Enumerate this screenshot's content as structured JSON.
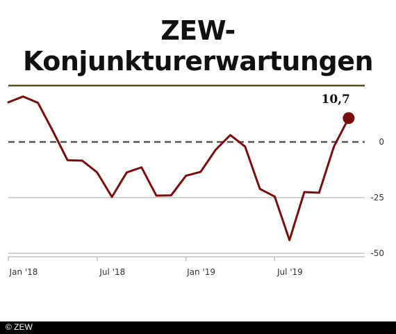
{
  "title": "ZEW-Konjunkturerwartungen",
  "footer": {
    "credit": "© ZEW"
  },
  "colors": {
    "line": "#7a0c0c",
    "marker": "#7a0c0c",
    "top_rule": "#5a4a1f",
    "zero_line": "#555555",
    "grid": "#b5b5b5",
    "axis_text": "#333333",
    "footer_bg": "#000000"
  },
  "chart_data": {
    "type": "line",
    "title": "ZEW-Konjunkturerwartungen",
    "x_ticks": [
      "Jan '18",
      "Jul '18",
      "Jan '19",
      "Jul '19"
    ],
    "x_tick_index": [
      0,
      6,
      12,
      18
    ],
    "y_ticks": [
      "0",
      "-25",
      "-50"
    ],
    "y_tick_values": [
      0,
      -25,
      -50
    ],
    "ylim": [
      -50,
      25
    ],
    "grid": "horizontal",
    "series": [
      {
        "values": [
          17.8,
          20.4,
          17.6,
          5.0,
          -8.2,
          -8.4,
          -13.7,
          -24.7,
          -13.7,
          -11.4,
          -24.1,
          -24.0,
          -15.2,
          -13.4,
          -3.6,
          3.1,
          -2.1,
          -21.1,
          -24.5,
          -44.1,
          -22.5,
          -22.8,
          -2.1,
          10.7
        ],
        "end_label": "10,7"
      }
    ]
  }
}
